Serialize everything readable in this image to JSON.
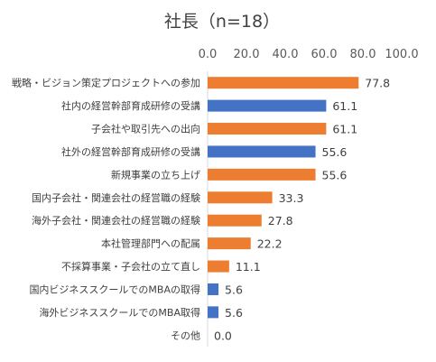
{
  "chart_data": {
    "type": "bar",
    "orientation": "horizontal",
    "title": "社長（n=18）",
    "xlim": [
      0,
      100
    ],
    "x_ticks": [
      "0.0",
      "20.0",
      "40.0",
      "60.0",
      "80.0",
      "100.0"
    ],
    "x_axis_position": "top",
    "grid": false,
    "categories": [
      "戦略・ビジョン策定プロジェクトへの参加",
      "社内の経営幹部育成研修の受講",
      "子会社や取引先への出向",
      "社外の経営幹部育成研修の受講",
      "新規事業の立ち上げ",
      "国内子会社・関連会社の経営職の経験",
      "海外子会社・関連会社の経営職の経験",
      "本社管理部門への配属",
      "不採算事業・子会社の立て直し",
      "国内ビジネススクールでのMBAの取得",
      "海外ビジネススクールでのMBA取得",
      "その他"
    ],
    "values": [
      77.8,
      61.1,
      61.1,
      55.6,
      55.6,
      33.3,
      27.8,
      22.2,
      11.1,
      5.6,
      5.6,
      0.0
    ],
    "value_labels": [
      "77.8",
      "61.1",
      "61.1",
      "55.6",
      "55.6",
      "33.3",
      "27.8",
      "22.2",
      "11.1",
      "5.6",
      "5.6",
      "0.0"
    ],
    "bar_colors": [
      "#ED7D31",
      "#4472C4",
      "#ED7D31",
      "#4472C4",
      "#ED7D31",
      "#ED7D31",
      "#ED7D31",
      "#ED7D31",
      "#ED7D31",
      "#4472C4",
      "#4472C4",
      "#ED7D31"
    ]
  }
}
